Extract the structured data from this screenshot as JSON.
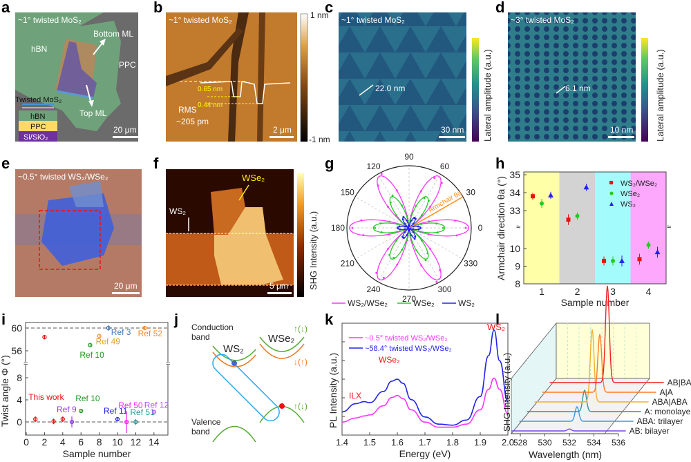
{
  "panel_labels": [
    "a",
    "b",
    "c",
    "d",
    "e",
    "f",
    "g",
    "h",
    "i",
    "j",
    "k",
    "l"
  ],
  "a": {
    "title": "~1° twisted MoS₂",
    "hbn": "hBN",
    "bottom": "Bottom ML",
    "ppc": "PPC",
    "top": "Top ML",
    "legend": {
      "twisted": "Twisted MoS₂",
      "hbn": "hBN",
      "ppc": "PPC",
      "si": "Si/SiO₂"
    },
    "scale": "20 μm"
  },
  "b": {
    "title": "~1° twisted MoS₂",
    "step1": "0.65 nm",
    "step2": "0.44 nm",
    "rms": "RMS",
    "rms_val": "~205 pm",
    "scale": "2 μm",
    "cbar_max": "1 nm",
    "cbar_min": "-1 nm"
  },
  "c": {
    "title": "~1° twisted MoS₂",
    "period": "22.0 nm",
    "scale": "30 nm",
    "cbar_label": "Lateral amplitude (a.u.)"
  },
  "d": {
    "title": "~3° twisted MoS₂",
    "period": "6.1 nm",
    "scale": "10 nm",
    "cbar_label": "Lateral amplitude (a.u.)"
  },
  "e": {
    "title": "~0.5° twisted WS₂/WSe₂",
    "scale": "20 μm"
  },
  "f": {
    "wse2": "WSe₂",
    "ws2": "WS₂",
    "scale": "5 μm",
    "cbar_label": "SHG Intensity (a.u.)"
  },
  "j": {
    "conduction": "Conduction",
    "conduction2": "band",
    "valence": "Valence",
    "valence2": "band",
    "ws2": "WS₂",
    "wse2": "WSe₂"
  },
  "colors": {
    "pink": "#ff33ff",
    "green": "#22cc22",
    "blue": "#2222ee",
    "red": "#ee1111",
    "orange": "#ff8c1a"
  },
  "chart_data": [
    {
      "panel": "g",
      "type": "polar",
      "angle_ticks": [
        "0",
        "30",
        "60",
        "90",
        "120",
        "150",
        "180",
        "210",
        "240",
        "270",
        "300",
        "330"
      ],
      "annotation": "Armchair θa",
      "armchair_angle_deg": 30,
      "series": [
        {
          "name": "WS₂/WSe₂",
          "color": "#ff33ff",
          "amplitude": 1.0
        },
        {
          "name": "WSe₂",
          "color": "#22cc22",
          "amplitude": 0.6
        },
        {
          "name": "WS₂",
          "color": "#2222ee",
          "amplitude": 0.2
        }
      ]
    },
    {
      "panel": "h",
      "type": "scatter",
      "xlabel": "Sample number",
      "ylabel": "Armchair direction θa (°)",
      "x_ticks": [
        "1",
        "2",
        "3",
        "4"
      ],
      "y_ticks_upper": [
        "33",
        "34",
        "35"
      ],
      "y_ticks_lower": [
        "8",
        "9",
        "10"
      ],
      "ylim_upper": [
        32,
        35.15
      ],
      "ylim_lower": [
        8,
        11
      ],
      "broken_axis": true,
      "background_colors": [
        "#ffffa8",
        "#d3d3d3",
        "#a4fbfb",
        "#fda8fd"
      ],
      "legend_position": "top-right",
      "series": [
        {
          "name": "WS₂/WSe₂",
          "color": "#ee1111",
          "marker": "square",
          "x": [
            1,
            2,
            3,
            4
          ],
          "y": [
            33.8,
            32.5,
            9.3,
            9.4
          ],
          "err": [
            0.2,
            0.3,
            0.25,
            0.3
          ]
        },
        {
          "name": "WSe₂",
          "color": "#22cc22",
          "marker": "circle",
          "x": [
            1,
            2,
            3,
            4
          ],
          "y": [
            33.4,
            32.7,
            9.3,
            10.2
          ],
          "err": [
            0.25,
            0.2,
            0.25,
            0.2
          ]
        },
        {
          "name": "WS₂",
          "color": "#2222ee",
          "marker": "triangle",
          "x": [
            1,
            2,
            3,
            4
          ],
          "y": [
            33.85,
            34.3,
            9.3,
            9.8
          ],
          "err": [
            0.2,
            0.2,
            0.3,
            0.3
          ]
        }
      ]
    },
    {
      "panel": "i",
      "type": "scatter",
      "xlabel": "Sample number",
      "ylabel": "Twist angle Φ (°)",
      "x_ticks": [
        "0",
        "2",
        "4",
        "6",
        "8",
        "10",
        "12",
        "14"
      ],
      "y_ticks_upper": [
        "56",
        "60"
      ],
      "y_ticks_lower": [
        "0",
        "4",
        "8"
      ],
      "xlim": [
        0,
        15.5
      ],
      "broken_axis": true,
      "reference_lines": [
        0,
        60
      ],
      "points": [
        {
          "label": "This work",
          "color": "#ee1111",
          "x": 1,
          "y": 0.5,
          "err": 0.5
        },
        {
          "label": "",
          "color": "#ee1111",
          "x": 2,
          "y": 58.4,
          "err": 0.4
        },
        {
          "label": "",
          "color": "#ee1111",
          "x": 3,
          "y": 0.1,
          "err": 0.5
        },
        {
          "label": "",
          "color": "#ee1111",
          "x": 4,
          "y": 0.5,
          "err": 0.5
        },
        {
          "label": "Ref 9",
          "color": "#9933ff",
          "x": 5,
          "y": 0,
          "err": 1.0
        },
        {
          "label": "Ref 10",
          "color": "#229922",
          "x": 6,
          "y": 2,
          "err": 0.2
        },
        {
          "label": "Ref 10",
          "color": "#229922",
          "x": 7,
          "y": 57,
          "err": 0.1
        },
        {
          "label": "Ref 49",
          "color": "#e8a030",
          "x": 8,
          "y": 58.6,
          "err": 0.2
        },
        {
          "label": "Ref 3",
          "color": "#4477bb",
          "x": 9,
          "y": 60,
          "err": 0.5
        },
        {
          "label": "Ref 11",
          "color": "#2222ee",
          "x": 10,
          "y": 0.5,
          "err": 0.3
        },
        {
          "label": "Ref 50",
          "color": "#ff22ff",
          "x": 11,
          "y": 0,
          "err": 2.0
        },
        {
          "label": "Ref 51",
          "color": "#229999",
          "x": 12,
          "y": 0,
          "err": 0.5
        },
        {
          "label": "Ref 52",
          "color": "#ff8822",
          "x": 13,
          "y": 60,
          "err": 0.3
        },
        {
          "label": "Ref 12",
          "color": "#aa55ff",
          "x": 14,
          "y": 1.8,
          "err": 0
        }
      ]
    },
    {
      "panel": "k",
      "type": "line",
      "xlabel": "Energy (eV)",
      "ylabel": "PL Intensity (a.u.)",
      "x_ticks": [
        "1.4",
        "1.5",
        "1.6",
        "1.7",
        "1.8",
        "1.9",
        "2.0"
      ],
      "xlim": [
        1.4,
        2.0
      ],
      "annotations": [
        "ILX",
        "WSe₂",
        "WS₂"
      ],
      "x": [
        1.4,
        1.45,
        1.48,
        1.5,
        1.55,
        1.58,
        1.6,
        1.62,
        1.65,
        1.7,
        1.75,
        1.8,
        1.85,
        1.9,
        1.93,
        1.95,
        1.97,
        2.0
      ],
      "series": [
        {
          "name": "~0.5° twisted WS₂/WSe₂",
          "color": "#ff33ff",
          "y": [
            0.1,
            0.14,
            0.16,
            0.17,
            0.26,
            0.34,
            0.36,
            0.33,
            0.22,
            0.1,
            0.05,
            0.05,
            0.08,
            0.22,
            0.42,
            0.53,
            0.42,
            0.18
          ]
        },
        {
          "name": "~58.4° twisted WS₂/WSe₂",
          "color": "#2222ee",
          "y": [
            0.2,
            0.28,
            0.3,
            0.29,
            0.4,
            0.5,
            0.52,
            0.48,
            0.32,
            0.15,
            0.08,
            0.07,
            0.12,
            0.35,
            0.75,
            1.0,
            0.7,
            0.3
          ]
        }
      ]
    },
    {
      "panel": "l",
      "type": "line",
      "xlabel": "Wavelength (nm)",
      "ylabel": "SHG Intensity (a.u.)",
      "x_ticks": [
        "528",
        "530",
        "532",
        "534",
        "536"
      ],
      "xlim": [
        527.5,
        537
      ],
      "series": [
        {
          "name": "AB: bilayer",
          "color": "#7744ee",
          "peak_nm": 532,
          "peak_height": 0.02
        },
        {
          "name": "ABA: trilayer",
          "color": "#3399ee",
          "peak_nm": 532,
          "peak_height": 0.15
        },
        {
          "name": "A: monolayer",
          "color": "#229999",
          "peak_nm": 532,
          "peak_height": 0.22
        },
        {
          "name": "ABA|ABA",
          "color": "#f0b030",
          "peak_nm": 532,
          "peak_height": 0.75
        },
        {
          "name": "A|A",
          "color": "#ff7a22",
          "peak_nm": 532,
          "peak_height": 0.6
        },
        {
          "name": "AB|BA",
          "color": "#ee2222",
          "peak_nm": 532,
          "peak_height": 1.0
        }
      ]
    }
  ]
}
